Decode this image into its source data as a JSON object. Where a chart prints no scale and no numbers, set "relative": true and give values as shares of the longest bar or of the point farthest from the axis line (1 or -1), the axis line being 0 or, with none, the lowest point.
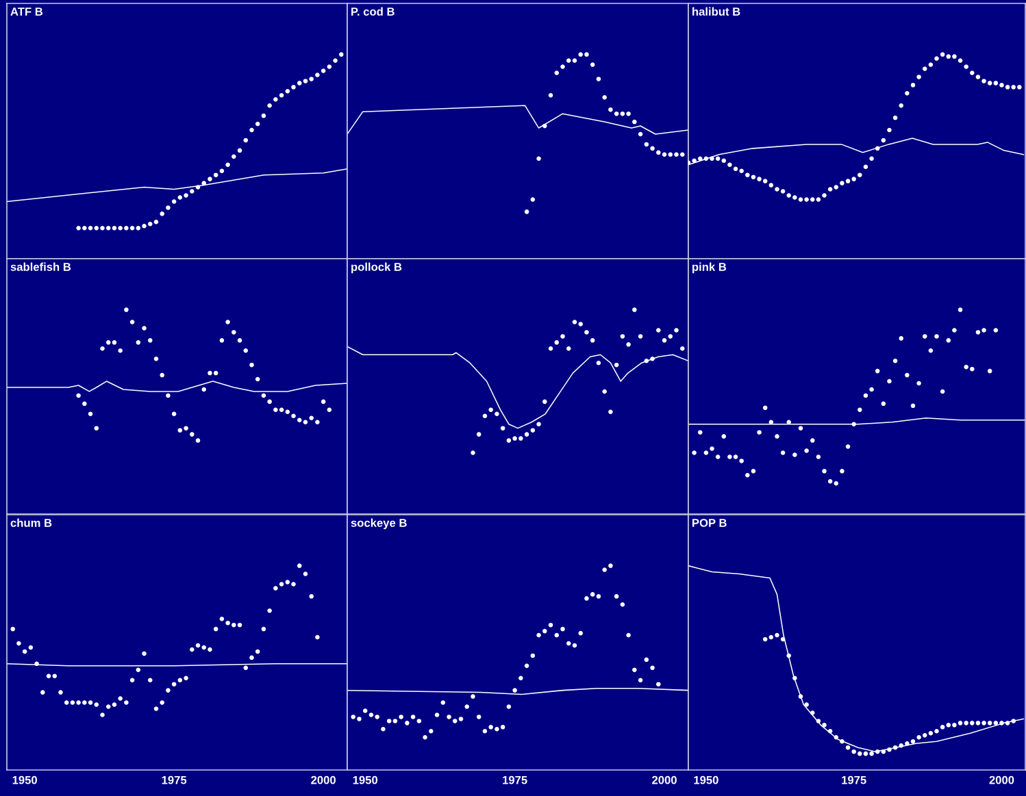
{
  "chart_data": [
    {
      "type": "line",
      "title": "ATF B",
      "relative": true,
      "xlim": [
        1947,
        2004
      ],
      "xticks": [
        1950,
        1975,
        2000
      ],
      "tick_labels": false,
      "series": [
        {
          "type": "scatter",
          "marker": "circle",
          "color": "#ffffff",
          "x": [
            1959,
            1960,
            1961,
            1962,
            1963,
            1964,
            1965,
            1966,
            1967,
            1968,
            1969,
            1970,
            1971,
            1972,
            1973,
            1974,
            1975,
            1976,
            1977,
            1978,
            1979,
            1980,
            1981,
            1982,
            1983,
            1984,
            1985,
            1986,
            1987,
            1988,
            1989,
            1990,
            1991,
            1992,
            1993,
            1994,
            1995,
            1996,
            1997,
            1998,
            1999,
            2000,
            2001,
            2002,
            2003
          ],
          "values": [
            0.15,
            0.15,
            0.15,
            0.15,
            0.15,
            0.15,
            0.15,
            0.15,
            0.15,
            0.15,
            0.15,
            0.16,
            0.17,
            0.18,
            0.22,
            0.25,
            0.28,
            0.3,
            0.31,
            0.33,
            0.35,
            0.37,
            0.39,
            0.41,
            0.43,
            0.46,
            0.5,
            0.53,
            0.58,
            0.63,
            0.66,
            0.7,
            0.75,
            0.78,
            0.8,
            0.82,
            0.84,
            0.86,
            0.87,
            0.88,
            0.9,
            0.92,
            0.94,
            0.97,
            1.0
          ]
        },
        {
          "color": "#ffffff",
          "x": [
            1947,
            1960,
            1970,
            1975,
            1980,
            1990,
            2000,
            2004
          ],
          "values": [
            0.28,
            0.32,
            0.35,
            0.34,
            0.36,
            0.41,
            0.42,
            0.44
          ]
        }
      ]
    },
    {
      "type": "line",
      "title": "P. cod B",
      "relative": true,
      "xlim": [
        1947,
        2004
      ],
      "xticks": [
        1950,
        1975,
        2000
      ],
      "tick_labels": false,
      "series": [
        {
          "type": "scatter",
          "marker": "circle",
          "color": "#ffffff",
          "x": [
            1977,
            1978,
            1979,
            1980,
            1981,
            1982,
            1983,
            1984,
            1985,
            1986,
            1987,
            1988,
            1989,
            1990,
            1991,
            1992,
            1993,
            1994,
            1995,
            1996,
            1997,
            1998,
            1999,
            2000,
            2001,
            2002,
            2003
          ],
          "values": [
            0.23,
            0.29,
            0.49,
            0.65,
            0.8,
            0.91,
            0.94,
            0.97,
            0.97,
            1.0,
            1.0,
            0.95,
            0.88,
            0.79,
            0.73,
            0.71,
            0.71,
            0.71,
            0.67,
            0.61,
            0.56,
            0.54,
            0.52,
            0.51,
            0.51,
            0.51,
            0.51
          ]
        },
        {
          "color": "#ffffff",
          "x": [
            1947,
            1949.6,
            1976.7,
            1979,
            1983,
            1990,
            1994.5,
            1996,
            1998.5,
            2004
          ],
          "values": [
            0.61,
            0.72,
            0.75,
            0.64,
            0.71,
            0.67,
            0.64,
            0.65,
            0.61,
            0.63
          ]
        }
      ]
    },
    {
      "type": "line",
      "title": "halibut B",
      "relative": true,
      "xlim": [
        1947,
        2004
      ],
      "xticks": [
        1950,
        1975,
        2000
      ],
      "tick_labels": false,
      "series": [
        {
          "type": "scatter",
          "marker": "circle",
          "color": "#ffffff",
          "x": [
            1947,
            1948,
            1949,
            1950,
            1951,
            1952,
            1953,
            1954,
            1955,
            1956,
            1957,
            1958,
            1959,
            1960,
            1961,
            1962,
            1963,
            1964,
            1965,
            1966,
            1967,
            1968,
            1969,
            1970,
            1971,
            1972,
            1973,
            1974,
            1975,
            1976,
            1977,
            1978,
            1979,
            1980,
            1981,
            1982,
            1983,
            1984,
            1985,
            1986,
            1987,
            1988,
            1989,
            1990,
            1991,
            1992,
            1993,
            1994,
            1995,
            1996,
            1997,
            1998,
            1999,
            2000,
            2001,
            2002,
            2003
          ],
          "values": [
            0.47,
            0.48,
            0.49,
            0.49,
            0.49,
            0.49,
            0.48,
            0.46,
            0.44,
            0.43,
            0.41,
            0.4,
            0.39,
            0.38,
            0.36,
            0.34,
            0.33,
            0.31,
            0.3,
            0.29,
            0.29,
            0.29,
            0.29,
            0.31,
            0.34,
            0.35,
            0.37,
            0.38,
            0.39,
            0.41,
            0.45,
            0.49,
            0.54,
            0.58,
            0.63,
            0.69,
            0.75,
            0.81,
            0.85,
            0.89,
            0.93,
            0.95,
            0.98,
            1.0,
            0.99,
            0.99,
            0.97,
            0.94,
            0.91,
            0.89,
            0.87,
            0.86,
            0.86,
            0.85,
            0.84,
            0.84,
            0.84
          ]
        },
        {
          "color": "#ffffff",
          "x": [
            1947,
            1952.2,
            1957.9,
            1967,
            1972.9,
            1976.5,
            1980.9,
            1984.9,
            1988.4,
            1995.9,
            1997.6,
            2000.4,
            2003.7
          ],
          "values": [
            0.46,
            0.51,
            0.54,
            0.56,
            0.56,
            0.52,
            0.56,
            0.59,
            0.56,
            0.56,
            0.57,
            0.53,
            0.51
          ]
        }
      ]
    },
    {
      "type": "line",
      "title": "sablefish B",
      "relative": true,
      "xlim": [
        1947,
        2004
      ],
      "xticks": [
        1950,
        1975,
        2000
      ],
      "tick_labels": false,
      "series": [
        {
          "type": "scatter",
          "marker": "circle",
          "color": "#ffffff",
          "x": [
            1959,
            1960,
            1961,
            1962,
            1963,
            1964,
            1965,
            1966,
            1967,
            1968,
            1969,
            1970,
            1971,
            1972,
            1973,
            1974,
            1975,
            1976,
            1977,
            1978,
            1979,
            1980,
            1981,
            1982,
            1983,
            1984,
            1985,
            1986,
            1987,
            1988,
            1989,
            1990,
            1991,
            1992,
            1993,
            1994,
            1995,
            1996,
            1997,
            1998,
            1999,
            2000,
            2001
          ],
          "values": [
            0.58,
            0.54,
            0.49,
            0.42,
            0.81,
            0.84,
            0.84,
            0.8,
            1.0,
            0.94,
            0.84,
            0.91,
            0.85,
            0.76,
            0.68,
            0.58,
            0.49,
            0.41,
            0.42,
            0.39,
            0.36,
            0.61,
            0.69,
            0.69,
            0.85,
            0.94,
            0.89,
            0.85,
            0.8,
            0.73,
            0.66,
            0.58,
            0.55,
            0.51,
            0.51,
            0.5,
            0.48,
            0.46,
            0.45,
            0.47,
            0.45,
            0.55,
            0.51
          ]
        },
        {
          "color": "#ffffff",
          "x": [
            1947,
            1957.3,
            1959,
            1960.8,
            1962,
            1963.7,
            1966.5,
            1971,
            1975.7,
            1978,
            1981.5,
            1985,
            1988.4,
            1994,
            1998.7,
            2004
          ],
          "values": [
            0.62,
            0.62,
            0.63,
            0.6,
            0.62,
            0.65,
            0.61,
            0.6,
            0.6,
            0.62,
            0.65,
            0.62,
            0.6,
            0.6,
            0.63,
            0.64
          ]
        }
      ]
    },
    {
      "type": "line",
      "title": "pollock B",
      "relative": true,
      "xlim": [
        1947,
        2004
      ],
      "xticks": [
        1950,
        1975,
        2000
      ],
      "tick_labels": false,
      "series": [
        {
          "type": "scatter",
          "marker": "circle",
          "color": "#ffffff",
          "x": [
            1968,
            1969,
            1970,
            1971,
            1972,
            1973,
            1974,
            1975,
            1976,
            1977,
            1978,
            1979,
            1980,
            1981,
            1982,
            1983,
            1984,
            1985,
            1986,
            1987,
            1988,
            1989,
            1990,
            1991,
            1992,
            1993,
            1994,
            1995,
            1996,
            1997,
            1998,
            1999,
            2000,
            2001,
            2002,
            2003
          ],
          "values": [
            0.3,
            0.39,
            0.48,
            0.51,
            0.49,
            0.42,
            0.36,
            0.37,
            0.37,
            0.39,
            0.41,
            0.44,
            0.55,
            0.81,
            0.84,
            0.87,
            0.81,
            0.94,
            0.93,
            0.89,
            0.85,
            0.74,
            0.6,
            0.5,
            0.73,
            0.87,
            0.83,
            1.0,
            0.87,
            0.75,
            0.76,
            0.9,
            0.85,
            0.87,
            0.9,
            0.81
          ]
        },
        {
          "color": "#ffffff",
          "x": [
            1947,
            1949.6,
            1964.6,
            1965.2,
            1967.5,
            1970.3,
            1972.6,
            1974,
            1975.5,
            1977.8,
            1980.1,
            1982.4,
            1984.7,
            1987.6,
            1989.3,
            1991,
            1992.7,
            1993.9,
            1996.2,
            1999,
            2001.4,
            2004
          ],
          "values": [
            0.82,
            0.78,
            0.78,
            0.79,
            0.74,
            0.65,
            0.51,
            0.44,
            0.42,
            0.45,
            0.49,
            0.59,
            0.69,
            0.77,
            0.78,
            0.74,
            0.65,
            0.69,
            0.74,
            0.77,
            0.78,
            0.75
          ]
        }
      ]
    },
    {
      "type": "line",
      "title": "pink B",
      "relative": true,
      "xlim": [
        1947,
        2004
      ],
      "xticks": [
        1950,
        1975,
        2000
      ],
      "tick_labels": false,
      "series": [
        {
          "type": "scatter",
          "marker": "circle",
          "color": "#ffffff",
          "x": [
            1948,
            1949,
            1950,
            1951,
            1952,
            1953,
            1954,
            1955,
            1956,
            1957,
            1958,
            1959,
            1960,
            1961,
            1962,
            1963,
            1964,
            1965,
            1966,
            1967,
            1968,
            1969,
            1970,
            1971,
            1972,
            1973,
            1974,
            1975,
            1976,
            1977,
            1978,
            1979,
            1980,
            1981,
            1982,
            1983,
            1984,
            1985,
            1986,
            1987,
            1988,
            1989,
            1990,
            1991,
            1992,
            1993,
            1994,
            1995,
            1996,
            1997,
            1998,
            1999
          ],
          "values": [
            0.3,
            0.4,
            0.3,
            0.32,
            0.28,
            0.38,
            0.28,
            0.28,
            0.26,
            0.19,
            0.21,
            0.4,
            0.52,
            0.45,
            0.38,
            0.3,
            0.45,
            0.29,
            0.42,
            0.31,
            0.36,
            0.28,
            0.21,
            0.16,
            0.15,
            0.21,
            0.33,
            0.44,
            0.51,
            0.58,
            0.61,
            0.7,
            0.54,
            0.65,
            0.75,
            0.86,
            0.68,
            0.53,
            0.64,
            0.87,
            0.8,
            0.87,
            0.6,
            0.85,
            0.9,
            1.0,
            0.72,
            0.71,
            0.89,
            0.9,
            0.7,
            0.9
          ]
        },
        {
          "color": "#ffffff",
          "x": [
            1947,
            1975.7,
            1981.5,
            1987.2,
            1993,
            2004
          ],
          "values": [
            0.44,
            0.44,
            0.45,
            0.47,
            0.46,
            0.46
          ]
        }
      ]
    },
    {
      "type": "line",
      "title": "chum B",
      "relative": true,
      "xlim": [
        1947,
        2004
      ],
      "xticks": [
        1950,
        1975,
        2000
      ],
      "tick_labels": "x",
      "series": [
        {
          "type": "scatter",
          "marker": "circle",
          "color": "#ffffff",
          "x": [
            1948,
            1949,
            1950,
            1951,
            1952,
            1953,
            1954,
            1955,
            1956,
            1957,
            1958,
            1959,
            1960,
            1961,
            1962,
            1963,
            1964,
            1965,
            1966,
            1967,
            1968,
            1969,
            1970,
            1971,
            1972,
            1973,
            1974,
            1975,
            1976,
            1977,
            1978,
            1979,
            1980,
            1981,
            1982,
            1983,
            1984,
            1985,
            1986,
            1987,
            1988,
            1989,
            1990,
            1991,
            1992,
            1993,
            1994,
            1995,
            1996,
            1997,
            1998,
            1999
          ],
          "values": [
            0.69,
            0.62,
            0.58,
            0.6,
            0.52,
            0.38,
            0.46,
            0.46,
            0.38,
            0.33,
            0.33,
            0.33,
            0.33,
            0.33,
            0.32,
            0.27,
            0.31,
            0.32,
            0.35,
            0.33,
            0.44,
            0.49,
            0.57,
            0.44,
            0.3,
            0.33,
            0.39,
            0.42,
            0.44,
            0.45,
            0.59,
            0.61,
            0.6,
            0.59,
            0.69,
            0.74,
            0.72,
            0.71,
            0.71,
            0.5,
            0.55,
            0.58,
            0.69,
            0.78,
            0.89,
            0.91,
            0.92,
            0.91,
            1.0,
            0.96,
            0.85,
            0.65
          ]
        },
        {
          "color": "#ffffff",
          "x": [
            1947,
            1957.3,
            1974.6,
            1991.8,
            2004
          ],
          "values": [
            0.52,
            0.51,
            0.51,
            0.52,
            0.52
          ]
        }
      ]
    },
    {
      "type": "line",
      "title": "sockeye B",
      "relative": true,
      "xlim": [
        1947,
        2004
      ],
      "xticks": [
        1950,
        1975,
        2000
      ],
      "tick_labels": "x",
      "series": [
        {
          "type": "scatter",
          "marker": "circle",
          "color": "#ffffff",
          "x": [
            1948,
            1949,
            1950,
            1951,
            1952,
            1953,
            1954,
            1955,
            1956,
            1957,
            1958,
            1959,
            1960,
            1961,
            1962,
            1963,
            1964,
            1965,
            1966,
            1967,
            1968,
            1969,
            1970,
            1971,
            1972,
            1973,
            1974,
            1975,
            1976,
            1977,
            1978,
            1979,
            1980,
            1981,
            1982,
            1983,
            1984,
            1985,
            1986,
            1987,
            1988,
            1989,
            1990,
            1991,
            1992,
            1993,
            1994,
            1995,
            1996,
            1997,
            1998,
            1999
          ],
          "values": [
            0.26,
            0.25,
            0.29,
            0.27,
            0.26,
            0.2,
            0.24,
            0.24,
            0.26,
            0.23,
            0.26,
            0.24,
            0.16,
            0.19,
            0.27,
            0.33,
            0.26,
            0.24,
            0.25,
            0.31,
            0.36,
            0.26,
            0.19,
            0.21,
            0.2,
            0.21,
            0.31,
            0.39,
            0.45,
            0.51,
            0.56,
            0.66,
            0.68,
            0.71,
            0.66,
            0.69,
            0.62,
            0.61,
            0.67,
            0.84,
            0.86,
            0.85,
            0.98,
            1.0,
            0.85,
            0.81,
            0.66,
            0.49,
            0.44,
            0.54,
            0.5,
            0.42
          ]
        },
        {
          "color": "#ffffff",
          "x": [
            1947,
            1969.2,
            1976.1,
            1983,
            1988.7,
            1995.6,
            2004
          ],
          "values": [
            0.39,
            0.38,
            0.37,
            0.39,
            0.4,
            0.4,
            0.39
          ]
        }
      ]
    },
    {
      "type": "line",
      "title": "POP B",
      "relative": true,
      "xlim": [
        1947,
        2004
      ],
      "xticks": [
        1950,
        1975,
        2000
      ],
      "tick_labels": "x",
      "series": [
        {
          "type": "scatter",
          "marker": "circle",
          "color": "#ffffff",
          "x": [
            1960,
            1961,
            1962,
            1963,
            1964,
            1965,
            1966,
            1967,
            1968,
            1969,
            1970,
            1971,
            1972,
            1973,
            1974,
            1975,
            1976,
            1977,
            1978,
            1979,
            1980,
            1981,
            1982,
            1983,
            1984,
            1985,
            1986,
            1987,
            1988,
            1989,
            1990,
            1991,
            1992,
            1993,
            1994,
            1995,
            1996,
            1997,
            1998,
            1999,
            2000,
            2001,
            2002
          ],
          "values": [
            0.64,
            0.65,
            0.66,
            0.64,
            0.56,
            0.45,
            0.36,
            0.32,
            0.28,
            0.24,
            0.22,
            0.19,
            0.16,
            0.14,
            0.11,
            0.09,
            0.08,
            0.08,
            0.08,
            0.09,
            0.09,
            0.1,
            0.11,
            0.12,
            0.13,
            0.14,
            0.16,
            0.17,
            0.18,
            0.19,
            0.21,
            0.22,
            0.22,
            0.23,
            0.23,
            0.23,
            0.23,
            0.23,
            0.23,
            0.23,
            0.23,
            0.23,
            0.24
          ]
        },
        {
          "color": "#ffffff",
          "x": [
            1947,
            1951,
            1955.6,
            1960.8,
            1962,
            1963.1,
            1964.8,
            1966.5,
            1969.4,
            1972.3,
            1975.7,
            1978.6,
            1982.1,
            1985.5,
            1989,
            1994.7,
            2000.4,
            2003.7
          ],
          "values": [
            1.0,
            0.97,
            0.96,
            0.94,
            0.86,
            0.66,
            0.46,
            0.32,
            0.22,
            0.15,
            0.11,
            0.09,
            0.11,
            0.13,
            0.14,
            0.18,
            0.23,
            0.25
          ]
        }
      ]
    }
  ]
}
